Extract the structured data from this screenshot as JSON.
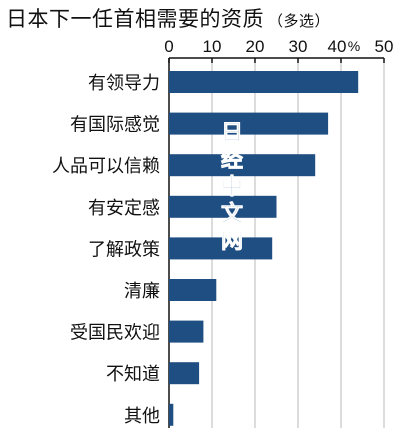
{
  "title": "日本下一任首相需要的资质",
  "subtitle": "（多选）",
  "watermark": [
    "日",
    "经",
    "中",
    "文",
    "网"
  ],
  "colors": {
    "bar": "#1f4e82",
    "grid": "#b8b8b8",
    "axis": "#111111"
  },
  "chart_data": {
    "type": "bar",
    "orientation": "horizontal",
    "categories": [
      "有领导力",
      "有国际感觉",
      "人品可以信赖",
      "有安定感",
      "了解政策",
      "清廉",
      "受国民欢迎",
      "不知道",
      "其他"
    ],
    "values": [
      44,
      37,
      34,
      25,
      24,
      11,
      8,
      7,
      1
    ],
    "xlim": [
      0,
      50
    ],
    "ticks": [
      0,
      10,
      20,
      30,
      40,
      50
    ],
    "tick_labels": [
      "0",
      "10",
      "20",
      "30",
      "40",
      "50"
    ],
    "unit": "%",
    "grid": true
  }
}
